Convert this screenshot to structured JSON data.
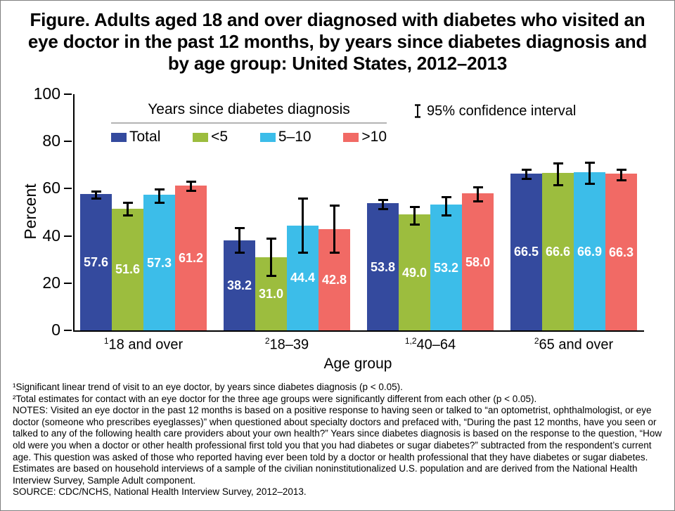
{
  "figure": {
    "title": "Figure. Adults aged 18 and over diagnosed with diabetes who visited an eye doctor in the past 12 months, by years since diabetes diagnosis and by age group: United States, 2012–2013"
  },
  "chart_data": {
    "type": "bar",
    "title": "Figure. Adults aged 18 and over diagnosed with diabetes who visited an eye doctor in the past 12 months, by years since diabetes diagnosis and by age group: United States, 2012–2013",
    "xlabel": "Age group",
    "ylabel": "Percent",
    "ylim": [
      0,
      100
    ],
    "y_ticks": [
      0,
      20,
      40,
      60,
      80,
      100
    ],
    "grid": false,
    "legend_title": "Years since diabetes diagnosis",
    "legend_position": "top-left-inside",
    "ci_label": "95% confidence interval",
    "categories": [
      {
        "sup": "1",
        "label": "18 and over"
      },
      {
        "sup": "2",
        "label": "18–39"
      },
      {
        "sup": "1,2",
        "label": "40–64"
      },
      {
        "sup": "2",
        "label": "65 and over"
      }
    ],
    "series": [
      {
        "name": "Total",
        "color": "#344a9e",
        "values": [
          57.6,
          38.2,
          53.8,
          66.5
        ],
        "ci_low": [
          55.5,
          32.3,
          50.8,
          63.6
        ],
        "ci_high": [
          59.3,
          43.9,
          55.7,
          68.4
        ]
      },
      {
        "name": "<5",
        "color": "#9cbd3e",
        "values": [
          51.6,
          31.0,
          49.0,
          66.6
        ],
        "ci_low": [
          48.2,
          22.6,
          44.4,
          61.0
        ],
        "ci_high": [
          54.4,
          39.4,
          52.7,
          71.2
        ]
      },
      {
        "name": "5–10",
        "color": "#3cbde9",
        "values": [
          57.3,
          44.4,
          53.2,
          66.9
        ],
        "ci_low": [
          53.6,
          32.4,
          48.1,
          61.5
        ],
        "ci_high": [
          60.2,
          56.2,
          57.0,
          71.5
        ]
      },
      {
        "name": ">10",
        "color": "#f16a65",
        "values": [
          61.2,
          42.8,
          58.0,
          66.3
        ],
        "ci_low": [
          58.5,
          32.5,
          54.1,
          63.1
        ],
        "ci_high": [
          63.4,
          53.2,
          61.0,
          68.5
        ]
      }
    ]
  },
  "footnotes": {
    "lines": [
      "¹Significant linear trend of visit to an eye doctor, by years since diabetes diagnosis (p < 0.05).",
      "²Total estimates for contact with an eye doctor for the three age groups were significantly different from each other (p < 0.05).",
      "NOTES: Visited an eye doctor in the past 12 months is based on a positive response to having seen or talked to “an optometrist, ophthalmologist, or eye doctor (someone who prescribes eyeglasses)” when questioned about specialty doctors and prefaced with, “During the past 12 months, have you seen or talked to any of the following health care providers about your own health?” Years since diabetes diagnosis is based on the response to the question, “How old were you when a doctor or other health professional first told you that you had diabetes or sugar diabetes?” subtracted from the respondent’s current age. This question was asked of those who reported having ever been told by a doctor or health professional that they have diabetes or sugar diabetes. Estimates are based on household interviews of a sample of the civilian noninstitutionalized U.S. population and are derived from the National Health Interview Survey, Sample Adult component.",
      "SOURCE: CDC/NCHS, National Health Interview Survey, 2012–2013."
    ]
  }
}
